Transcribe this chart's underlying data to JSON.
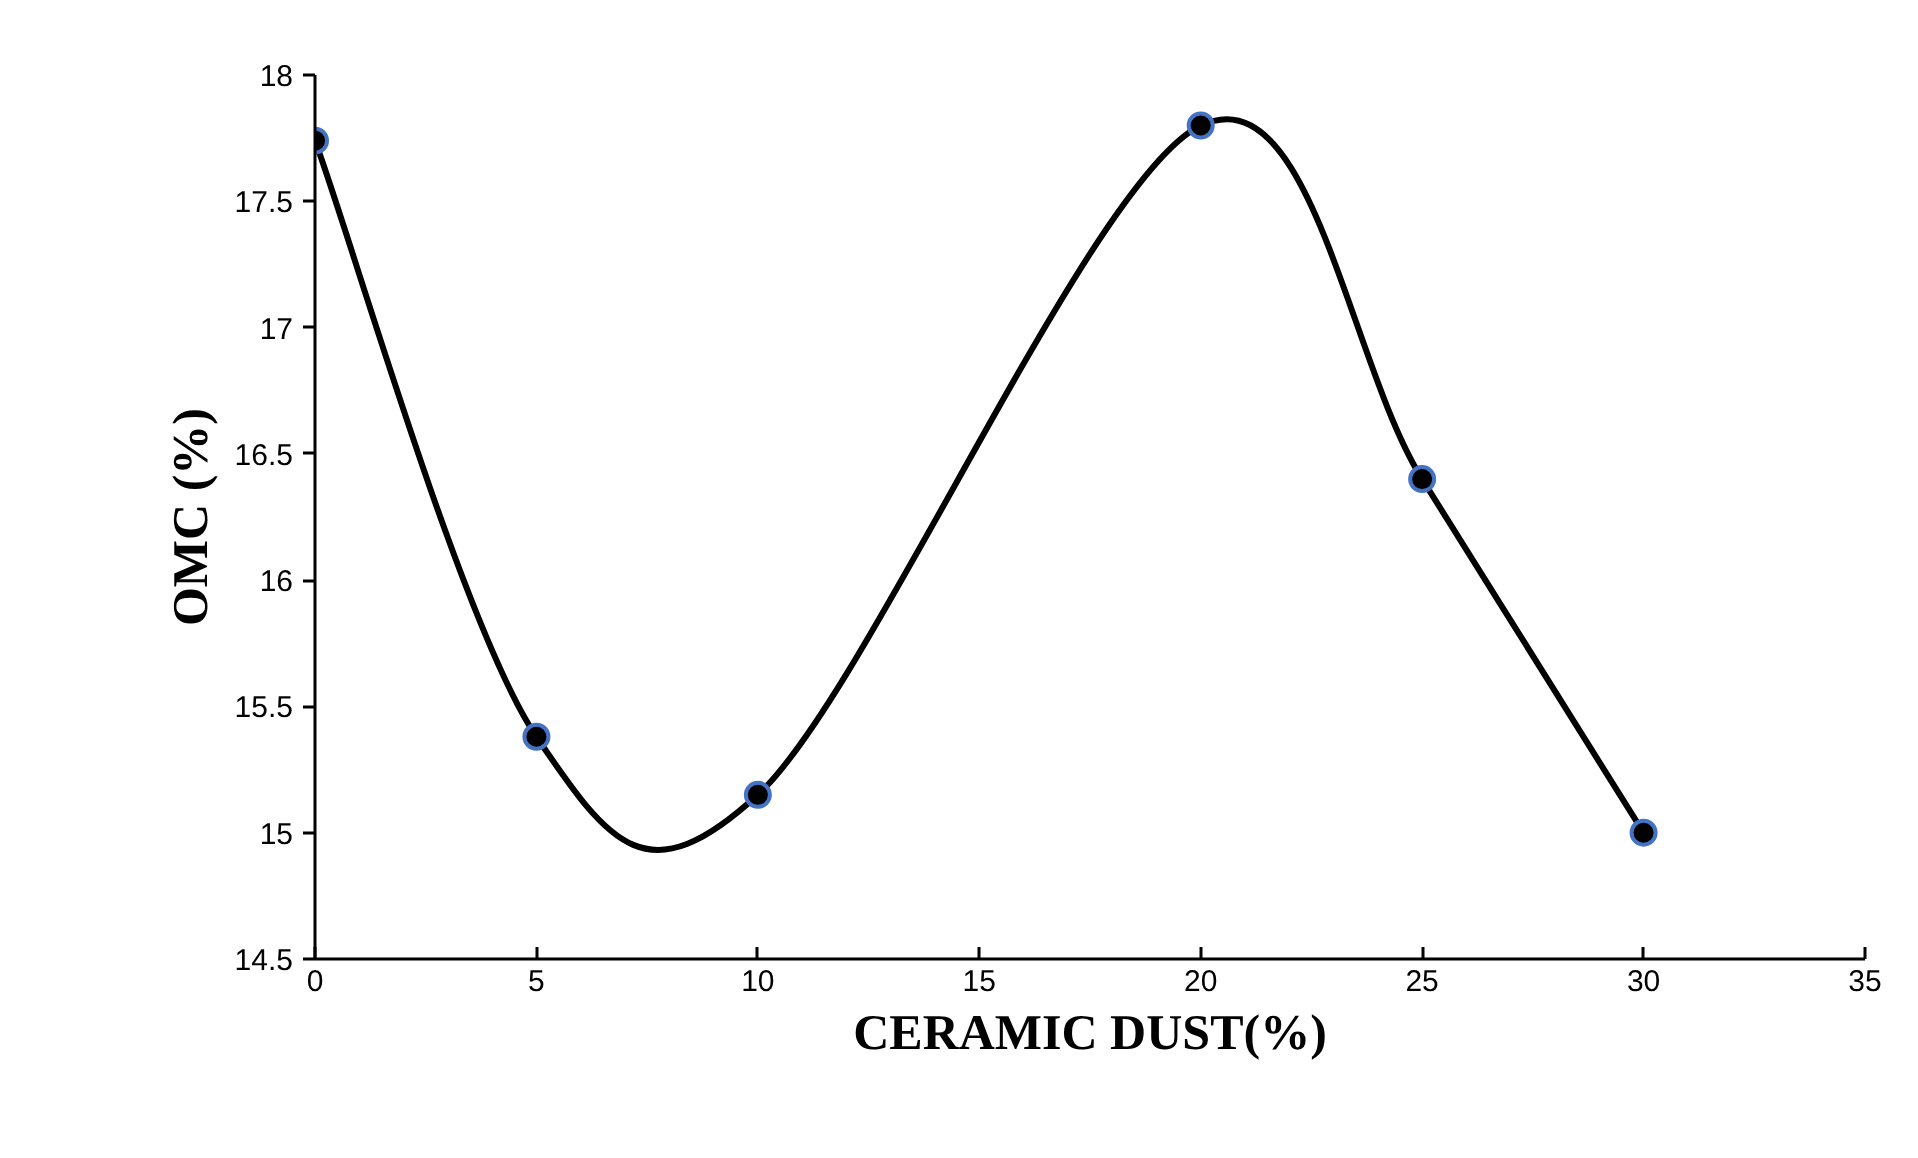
{
  "chart_data": {
    "type": "line",
    "xlabel": "CERAMIC DUST(%)",
    "ylabel": "OMC (%)",
    "x": [
      0,
      5,
      10,
      20,
      25,
      30
    ],
    "series": [
      {
        "color": "#000000",
        "values": [
          17.74,
          15.38,
          15.15,
          17.8,
          16.4,
          15.0
        ]
      }
    ],
    "xlim": [
      0,
      35
    ],
    "xticks": [
      0,
      5,
      10,
      15,
      20,
      25,
      30,
      35
    ],
    "ylim": [
      14.5,
      18
    ],
    "yticks": [
      14.5,
      15,
      15.5,
      16,
      16.5,
      17,
      17.5,
      18
    ],
    "grid": false,
    "marker": "circle",
    "line_style": "solid"
  }
}
